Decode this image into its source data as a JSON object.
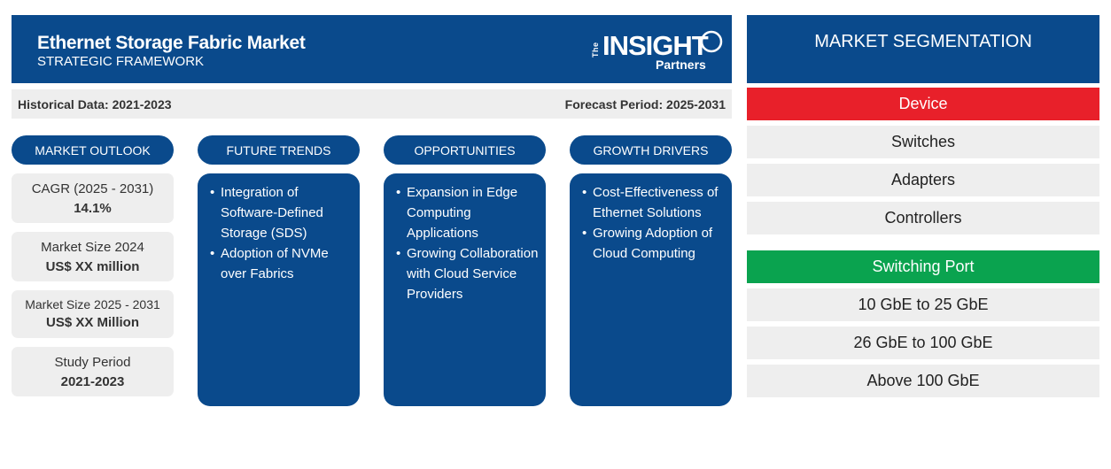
{
  "header": {
    "title": "Ethernet Storage Fabric Market",
    "subtitle": "STRATEGIC FRAMEWORK"
  },
  "logo": {
    "the": "The",
    "insight": "INSIGHT",
    "partners": "Partners"
  },
  "periods": {
    "historical": "Historical Data: 2021-2023",
    "forecast": "Forecast Period: 2025-2031"
  },
  "columns": {
    "market_outlook": "MARKET OUTLOOK",
    "future_trends": "FUTURE TRENDS",
    "opportunities": "OPPORTUNITIES",
    "growth_drivers": "GROWTH DRIVERS"
  },
  "outlook": [
    {
      "label": "CAGR (2025 - 2031)",
      "value": "14.1%"
    },
    {
      "label": "Market Size 2024",
      "value": "US$ XX million"
    },
    {
      "label": "Market Size 2025 - 2031",
      "value": "US$ XX Million"
    },
    {
      "label": "Study Period",
      "value": "2021-2023"
    }
  ],
  "future_trends": [
    "Integration of Software-Defined Storage (SDS)",
    "Adoption of NVMe over Fabrics"
  ],
  "opportunities": [
    "Expansion in Edge Computing Applications",
    "Growing Collaboration with Cloud Service Providers"
  ],
  "growth_drivers": [
    "Cost-Effectiveness of Ethernet Solutions",
    "Growing Adoption of Cloud Computing"
  ],
  "segmentation": {
    "title": "MARKET SEGMENTATION",
    "groups": [
      {
        "name": "Device",
        "color": "#e8202a",
        "items": [
          "Switches",
          "Adapters",
          "Controllers"
        ]
      },
      {
        "name": "Switching Port",
        "color": "#0aa34f",
        "items": [
          "10 GbE to 25 GbE",
          "26 GbE to 100 GbE",
          "Above 100 GbE"
        ]
      }
    ]
  }
}
